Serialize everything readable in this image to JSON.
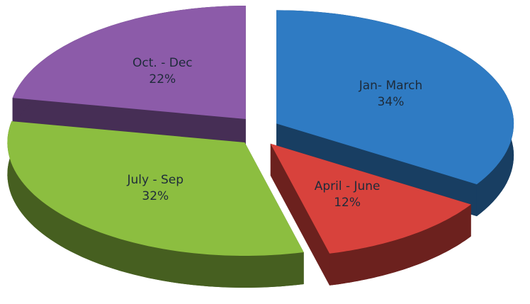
{
  "chart_data": {
    "type": "pie",
    "categories": [
      "Jan- March",
      "April - June",
      "July - Sep",
      "Oct. - Dec"
    ],
    "values": [
      34,
      12,
      32,
      22
    ],
    "value_labels": [
      "34%",
      "12%",
      "32%",
      "22%"
    ],
    "colors": [
      "#2f7bc3",
      "#d8423c",
      "#8cbe40",
      "#8c5ba9"
    ]
  }
}
